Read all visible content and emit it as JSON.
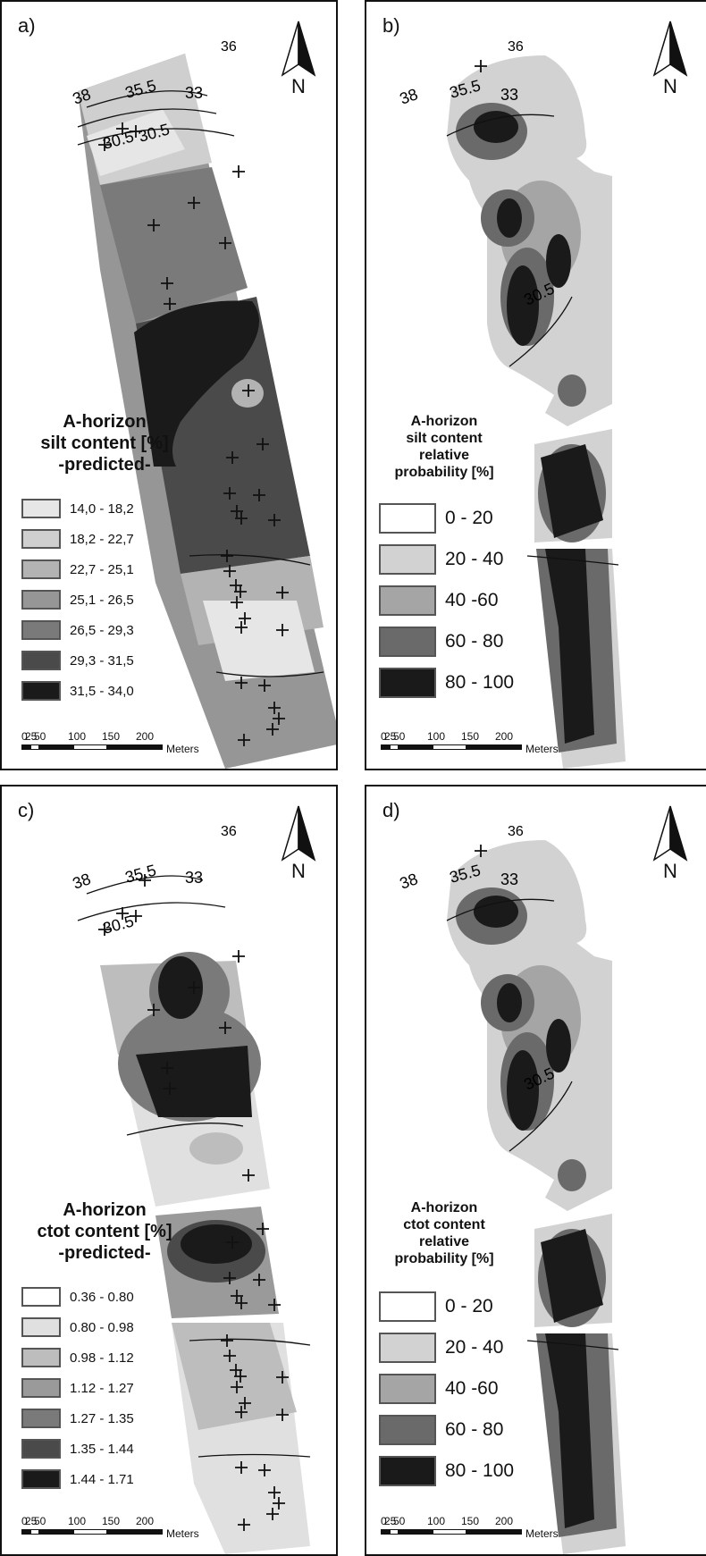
{
  "north_label": "N",
  "scale": {
    "ticks": [
      "0",
      "25",
      "50",
      "100",
      "150",
      "200"
    ],
    "unit": "Meters"
  },
  "contours": [
    "38",
    "35.5",
    "33",
    "30.5",
    "30.5",
    "36"
  ],
  "panels": [
    {
      "id": "a",
      "label": "a)",
      "title_lines": [
        "A-horizon",
        "silt content [%]",
        "-predicted-"
      ],
      "legend": [
        {
          "label": "14,0 - 18,2",
          "color": "#e6e6e6"
        },
        {
          "label": "18,2 - 22,7",
          "color": "#cfcfcf"
        },
        {
          "label": "22,7 - 25,1",
          "color": "#b3b3b3"
        },
        {
          "label": "25,1 - 26,5",
          "color": "#969696"
        },
        {
          "label": "26,5 - 29,3",
          "color": "#7a7a7a"
        },
        {
          "label": "29,3 - 31,5",
          "color": "#4a4a4a"
        },
        {
          "label": "31,5 - 34,0",
          "color": "#1a1a1a"
        }
      ]
    },
    {
      "id": "b",
      "label": "b)",
      "title_lines": [
        "A-horizon",
        "silt content",
        "relative",
        "probability [%]"
      ],
      "legend": [
        {
          "label": "0 - 20",
          "color": "#ffffff"
        },
        {
          "label": "20 - 40",
          "color": "#d2d2d2"
        },
        {
          "label": "40 -60",
          "color": "#a5a5a5"
        },
        {
          "label": "60 - 80",
          "color": "#6a6a6a"
        },
        {
          "label": "80 - 100",
          "color": "#1a1a1a"
        }
      ]
    },
    {
      "id": "c",
      "label": "c)",
      "title_lines": [
        "A-horizon",
        "ctot content [%]",
        "-predicted-"
      ],
      "legend": [
        {
          "label": "0.36 - 0.80",
          "color": "#ffffff"
        },
        {
          "label": "0.80 - 0.98",
          "color": "#e0e0e0"
        },
        {
          "label": "0.98 - 1.12",
          "color": "#bdbdbd"
        },
        {
          "label": "1.12 - 1.27",
          "color": "#9a9a9a"
        },
        {
          "label": "1.27 - 1.35",
          "color": "#7a7a7a"
        },
        {
          "label": "1.35 - 1.44",
          "color": "#4a4a4a"
        },
        {
          "label": "1.44 - 1.71",
          "color": "#1a1a1a"
        }
      ]
    },
    {
      "id": "d",
      "label": "d)",
      "title_lines": [
        "A-horizon",
        "ctot content",
        "relative",
        "probability [%]"
      ],
      "legend": [
        {
          "label": "0 - 20",
          "color": "#ffffff"
        },
        {
          "label": "20 - 40",
          "color": "#d2d2d2"
        },
        {
          "label": "40 -60",
          "color": "#a5a5a5"
        },
        {
          "label": "60 - 80",
          "color": "#6a6a6a"
        },
        {
          "label": "80 - 100",
          "color": "#1a1a1a"
        }
      ]
    }
  ]
}
